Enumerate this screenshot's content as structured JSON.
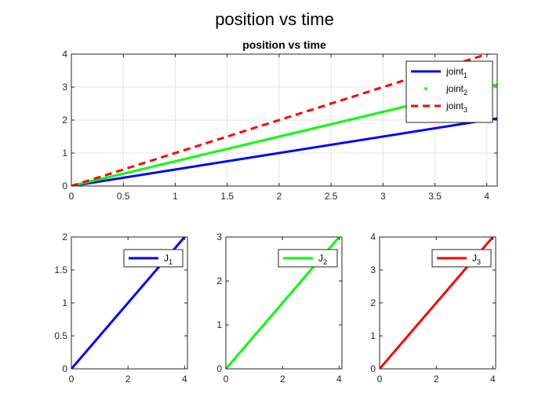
{
  "figure": {
    "title": "position vs time"
  },
  "chart_data": [
    {
      "type": "line",
      "title": "position vs time",
      "xlabel": "",
      "ylabel": "",
      "xlim": [
        0,
        4.1
      ],
      "ylim": [
        0,
        4
      ],
      "xticks": [
        0,
        0.5,
        1,
        1.5,
        2,
        2.5,
        3,
        3.5,
        4
      ],
      "xtick_labels": [
        "0",
        "0.5",
        "1",
        "1.5",
        "2",
        "2.5",
        "3",
        "3.5",
        "4"
      ],
      "yticks": [
        0,
        1,
        2,
        3,
        4
      ],
      "ytick_labels": [
        "0",
        "1",
        "2",
        "3",
        "4"
      ],
      "grid": true,
      "legend_position": "top-right",
      "series": [
        {
          "name": "joint",
          "sub": "1",
          "color": "#0000ff",
          "style": "solid",
          "x": [
            0,
            4.1
          ],
          "y": [
            0,
            2.05
          ]
        },
        {
          "name": "joint",
          "sub": "2",
          "color": "#00ff00",
          "style": "solid",
          "legend_marker": "dot",
          "x": [
            0,
            4.1
          ],
          "y": [
            0,
            3.075
          ]
        },
        {
          "name": "joint",
          "sub": "3",
          "color": "#ff0000",
          "style": "dashed",
          "x": [
            0,
            4.1
          ],
          "y": [
            0,
            4.1
          ]
        }
      ]
    },
    {
      "type": "line",
      "xlim": [
        0,
        4.1
      ],
      "ylim": [
        0,
        2
      ],
      "xticks": [
        0,
        2,
        4
      ],
      "xtick_labels": [
        "0",
        "2",
        "4"
      ],
      "yticks": [
        0,
        0.5,
        1,
        1.5,
        2
      ],
      "ytick_labels": [
        "0",
        "0.5",
        "1",
        "1.5",
        "2"
      ],
      "grid": false,
      "legend_position": "top-right",
      "series": [
        {
          "name": "J",
          "sub": "1",
          "color": "#0000ff",
          "style": "solid",
          "x": [
            0,
            4
          ],
          "y": [
            0,
            2
          ]
        }
      ]
    },
    {
      "type": "line",
      "xlim": [
        0,
        4.1
      ],
      "ylim": [
        0,
        3
      ],
      "xticks": [
        0,
        2,
        4
      ],
      "xtick_labels": [
        "0",
        "2",
        "4"
      ],
      "yticks": [
        0,
        1,
        2,
        3
      ],
      "ytick_labels": [
        "0",
        "1",
        "2",
        "3"
      ],
      "grid": false,
      "legend_position": "top-right",
      "series": [
        {
          "name": "J",
          "sub": "2",
          "color": "#00ff00",
          "style": "solid",
          "x": [
            0,
            4
          ],
          "y": [
            0,
            3
          ]
        }
      ]
    },
    {
      "type": "line",
      "xlim": [
        0,
        4.1
      ],
      "ylim": [
        0,
        4
      ],
      "xticks": [
        0,
        2,
        4
      ],
      "xtick_labels": [
        "0",
        "2",
        "4"
      ],
      "yticks": [
        0,
        1,
        2,
        3,
        4
      ],
      "ytick_labels": [
        "0",
        "1",
        "2",
        "3",
        "4"
      ],
      "grid": false,
      "legend_position": "top-right",
      "series": [
        {
          "name": "J",
          "sub": "3",
          "color": "#ff0000",
          "style": "solid",
          "x": [
            0,
            4
          ],
          "y": [
            0,
            4
          ]
        }
      ]
    }
  ]
}
